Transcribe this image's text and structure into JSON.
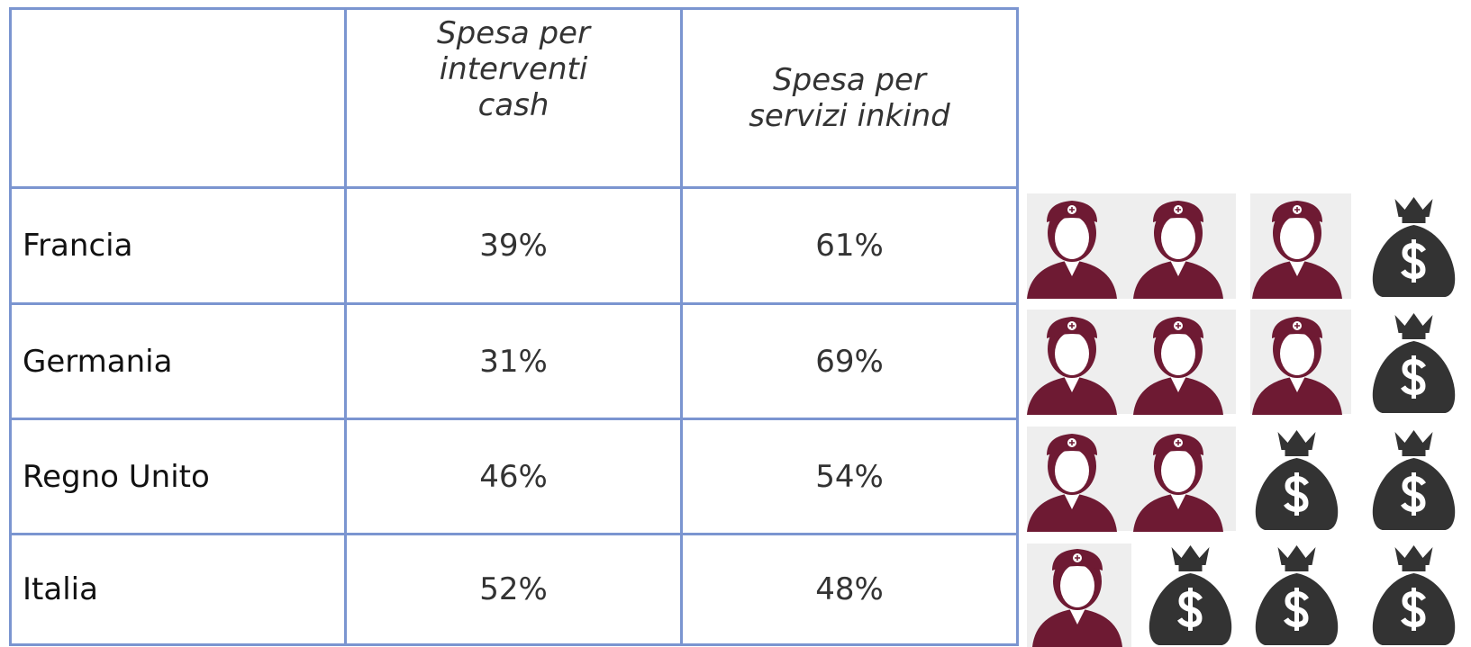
{
  "table": {
    "header": [
      "",
      "Spesa per interventi cash",
      "Spesa per servizi inkind"
    ],
    "rows": [
      [
        "Francia",
        "39%",
        "61%"
      ],
      [
        "Germania",
        "31%",
        "69%"
      ],
      [
        "Regno Unito",
        "46%",
        "54%"
      ],
      [
        "Italia",
        "52%",
        "48%"
      ]
    ]
  }
}
